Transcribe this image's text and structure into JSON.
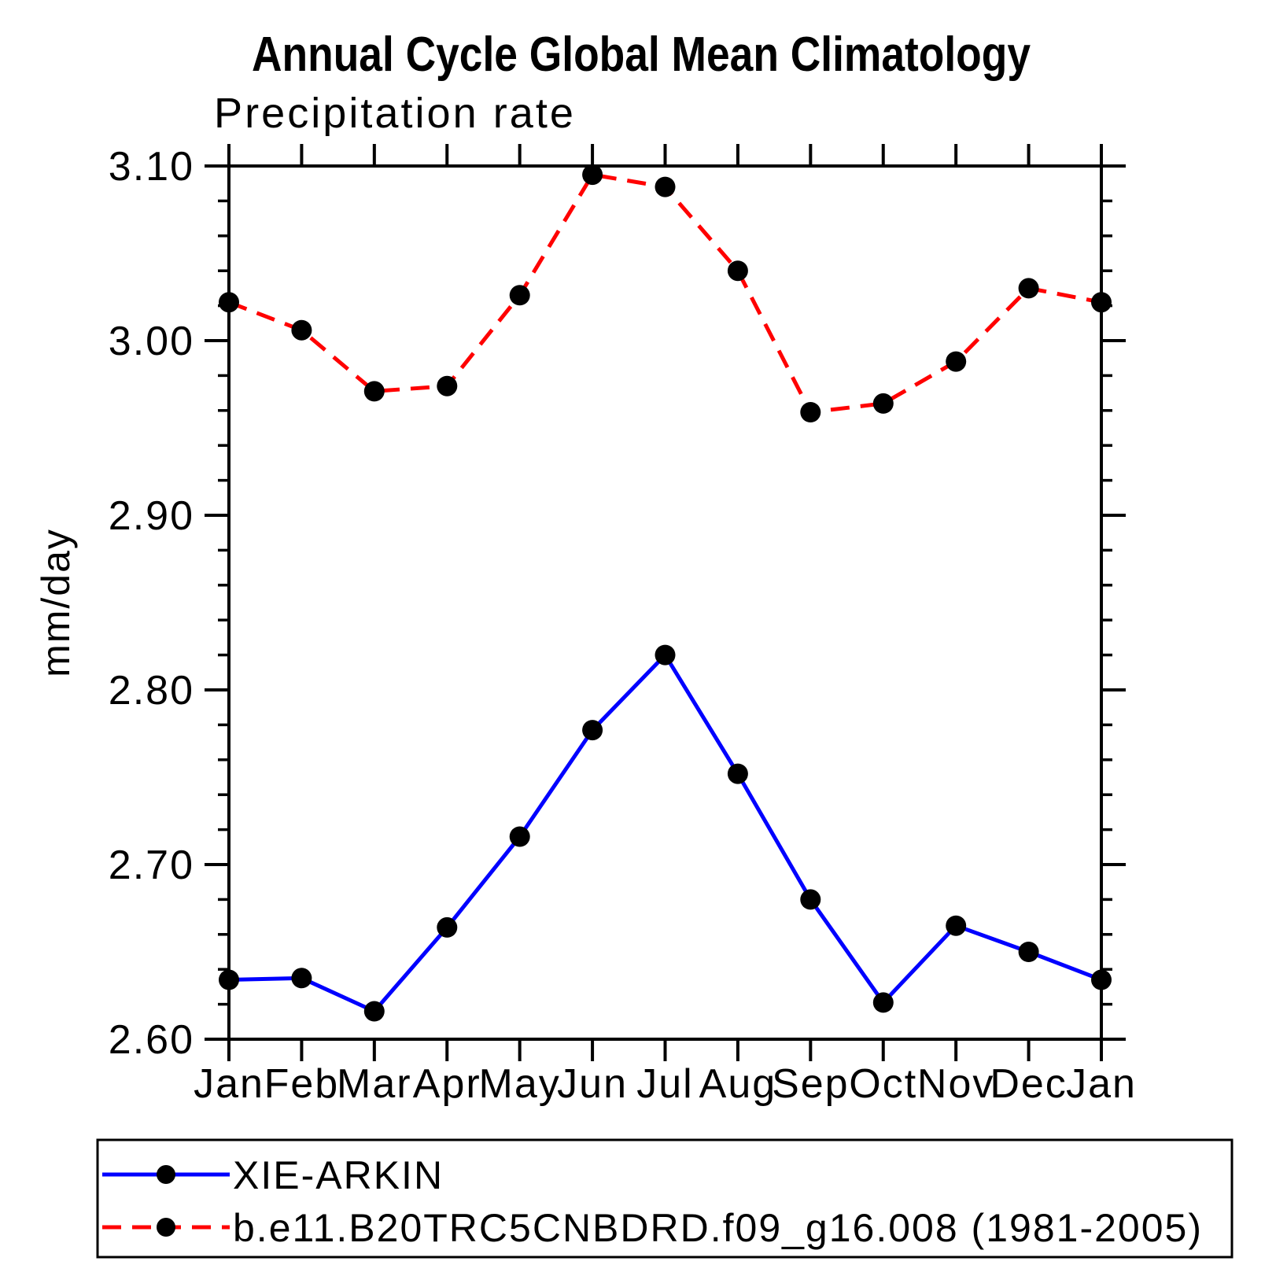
{
  "title": "Annual Cycle Global Mean Climatology",
  "subtitle": "Precipitation rate",
  "colors": {
    "axis": "#000000",
    "marker": "#000000",
    "obs_line": "#0000ff",
    "model_line": "#ff0000",
    "background": "#ffffff"
  },
  "chart_data": {
    "type": "line",
    "title": "Annual Cycle Global Mean Climatology",
    "subtitle": "Precipitation rate",
    "categories": [
      "Jan",
      "Feb",
      "Mar",
      "Apr",
      "May",
      "Jun",
      "Jul",
      "Aug",
      "Sep",
      "Oct",
      "Nov",
      "Dec",
      "Jan"
    ],
    "xlabel": "",
    "ylabel": "mm/day",
    "ylim": [
      2.6,
      3.1
    ],
    "ytick_labels": [
      "2.60",
      "2.70",
      "2.80",
      "2.90",
      "3.00",
      "3.10"
    ],
    "ytick_major": [
      2.6,
      2.7,
      2.8,
      2.9,
      3.0,
      3.1
    ],
    "ytick_minor_step": 0.02,
    "grid": false,
    "legend_position": "bottom-left box",
    "series": [
      {
        "name": "XIE-ARKIN",
        "color": "#0000ff",
        "line_style": "solid",
        "marker": "circle",
        "marker_color": "#000000",
        "values": [
          2.634,
          2.635,
          2.616,
          2.664,
          2.716,
          2.777,
          2.82,
          2.752,
          2.68,
          2.621,
          2.665,
          2.65,
          2.634
        ]
      },
      {
        "name": "b.e11.B20TRC5CNBDRD.f09_g16.008 (1981-2005)",
        "color": "#ff0000",
        "line_style": "dashed",
        "marker": "circle",
        "marker_color": "#000000",
        "values": [
          3.022,
          3.006,
          2.971,
          2.974,
          3.026,
          3.095,
          3.088,
          3.04,
          2.959,
          2.964,
          2.988,
          3.03,
          3.022
        ]
      }
    ]
  }
}
